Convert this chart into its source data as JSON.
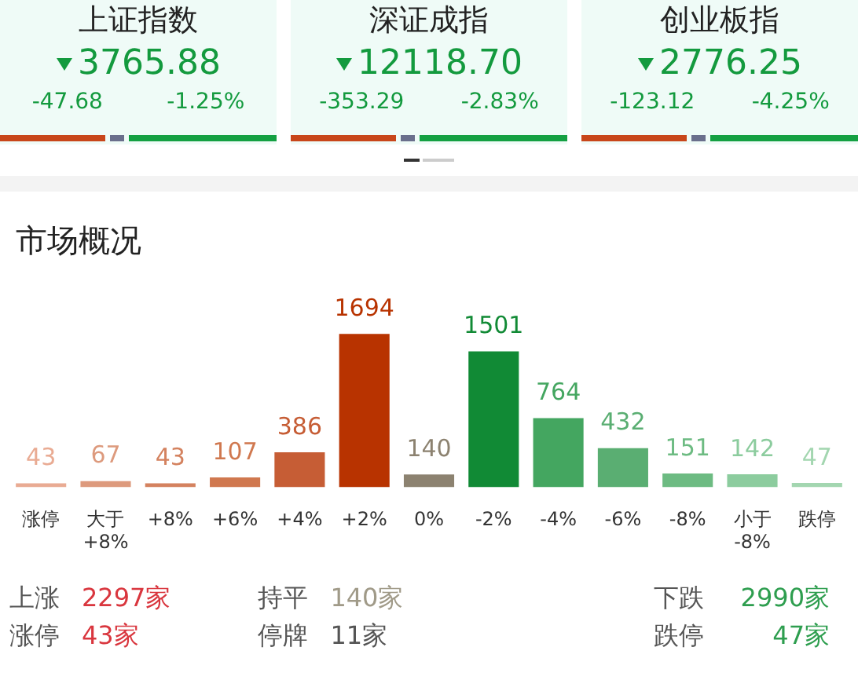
{
  "chart_data": [
    {
      "type": "other",
      "annotations": [
        "上证指数",
        "3765.88",
        "-47.68",
        "-1.25%",
        "深证成指",
        "12118.70",
        "-353.29",
        "-2.83%",
        "创业板指",
        "2776.25",
        "-123.12",
        "-4.25%"
      ]
    },
    {
      "type": "bar",
      "title": "市场概况",
      "categories": [
        "涨停",
        "大于 +8%",
        "+8%",
        "+6%",
        "+4%",
        "+2%",
        "0%",
        "-2%",
        "-4%",
        "-6%",
        "-8%",
        "小于 -8%",
        "跌停"
      ],
      "values": [
        43,
        67,
        43,
        107,
        386,
        1694,
        140,
        1501,
        764,
        432,
        151,
        142,
        47
      ],
      "colors": [
        "#e9ab93",
        "#dd9a7d",
        "#d4825f",
        "#d0784f",
        "#c65d35",
        "#b83300",
        "#8c8270",
        "#118a35",
        "#44a660",
        "#5aae72",
        "#6dbb82",
        "#8ccc9e",
        "#a3d6b0"
      ],
      "data_labels": true,
      "tick_labels": "x",
      "grid": false,
      "legend": false,
      "annotations": [
        "上涨",
        "2297家",
        "持平",
        "140家",
        "下跌",
        "2990家",
        "涨停",
        "43家",
        "停牌",
        "11家",
        "跌停",
        "47家"
      ]
    }
  ]
}
